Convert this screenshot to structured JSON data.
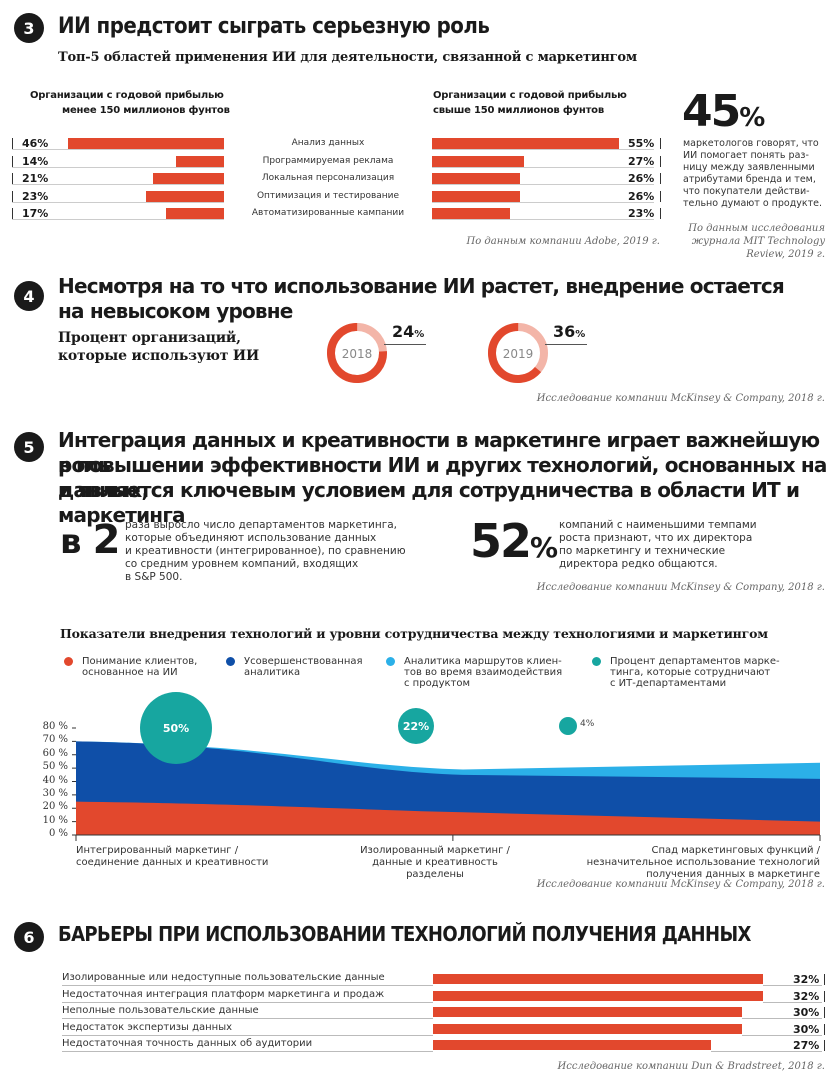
{
  "s3": {
    "num": "3",
    "title": "ИИ предстоит сыграть серьезную роль",
    "subtitle": "Топ-5 областей применения ИИ для деятельности, связанной с маркетингом",
    "left_head_1": "Организации с годовой прибылью",
    "left_head_2": "менее 150 миллионов фунтов",
    "right_head_1": "Организации с годовой прибылью",
    "right_head_2": "свыше 150 миллионов фунтов",
    "big_pct": "45",
    "big_pct_sign": "%",
    "big_text": [
      "маркетологов говорят, что",
      "ИИ помогает понять раз-",
      "ницу между заявленными",
      "атрибутами бренда и тем,",
      "что покупатели действи-",
      "тельно думают о продукте."
    ],
    "source_left": "По данным компании Adobe, 2019 г.",
    "source_right": [
      "По данным исследования",
      "журнала MIT Technology",
      "Review, 2019 г."
    ]
  },
  "s4": {
    "num": "4",
    "title_1": "Несмотря на то что использование ИИ растет, внедрение остается",
    "title_2": "на невысоком уровне",
    "label_1": "Процент организаций,",
    "label_2": "которые используют ИИ",
    "source": "Исследование компании McKinsey & Company, 2018 г."
  },
  "s5": {
    "num": "5",
    "title_1": "Интеграция данных и креативности в маркетинге играет важнейшую роль",
    "title_2": "в повышении эффективности ИИ и других технологий, основанных на данных,",
    "title_3": "и является ключевым условием для сотрудничества в области ИТ и маркетинга",
    "stat1_a": "в",
    "stat1_b": "2",
    "stat1_text": [
      "раза выросло число департаментов маркетинга,",
      "которые объединяют использование данных",
      "и креативности (интегрированное), по сравнению",
      "со средним уровнем компаний, входящих",
      "в S&P 500."
    ],
    "stat2_num": "52",
    "stat2_sign": "%",
    "stat2_text": [
      "компаний с наименьшими темпами",
      "роста признают, что их директора",
      "по маркетингу и технические",
      "директора редко общаются."
    ],
    "source": "Исследование компании McKinsey & Company, 2018 г.",
    "area_title": "Показатели внедрения технологий и уровни сотрудничества между технологиями и маркетингом",
    "legend": [
      {
        "text": [
          "Понимание клиентов,",
          "основанное на ИИ"
        ],
        "color": "#e2482d"
      },
      {
        "text": [
          "Усовершенствованная",
          "аналитика"
        ],
        "color": "#0f4fa8"
      },
      {
        "text": [
          "Аналитика маршрутов клиен-",
          "тов во время взаимодействия",
          "с продуктом"
        ],
        "color": "#2bb0e8"
      },
      {
        "text": [
          "Процент департаментов марке-",
          "тинга, которые сотрудничают",
          "с ИТ-департаментами"
        ],
        "color": "#17a6a0"
      }
    ],
    "xlabels": [
      [
        "Интегрированный маркетинг /",
        "соединение данных и креативности"
      ],
      [
        "Изолированный маркетинг /",
        "данные и креативность разделены"
      ],
      [
        "Спад маркетинговых функций /",
        "незначительное использование технологий",
        "получения данных в маркетинге"
      ]
    ],
    "area_source": "Исследование компании McKinsey & Company, 2018 г."
  },
  "s6": {
    "num": "6",
    "title": "БАРЬЕРЫ ПРИ ИСПОЛЬЗОВАНИИ ТЕХНОЛОГИЙ ПОЛУЧЕНИЯ ДАННЫХ",
    "source": "Исследование компании Dun & Bradstreet, 2018 г."
  },
  "chart_data": [
    {
      "type": "bar",
      "title": "Топ-5 областей применения ИИ для деятельности, связанной с маркетингом",
      "categories": [
        "Анализ данных",
        "Программируемая реклама",
        "Локальная персонализация",
        "Оптимизация и тестирование",
        "Автоматизированные кампании"
      ],
      "series": [
        {
          "name": "Организации с годовой прибылью менее 150 миллионов фунтов",
          "values": [
            46,
            14,
            21,
            23,
            17
          ],
          "labels": [
            "46%",
            "14%",
            "21%",
            "23%",
            "17%"
          ]
        },
        {
          "name": "Организации с годовой прибылью свыше 150 миллионов фунтов",
          "values": [
            55,
            27,
            26,
            26,
            23
          ],
          "labels": [
            "55%",
            "27%",
            "26%",
            "26%",
            "23%"
          ]
        }
      ],
      "color": "#e2482d"
    },
    {
      "type": "pie",
      "title": "Процент организаций, которые используют ИИ",
      "items": [
        {
          "label": "2018",
          "value": 24,
          "value_label": "24",
          "sign": "%"
        },
        {
          "label": "2019",
          "value": 36,
          "value_label": "36",
          "sign": "%"
        }
      ],
      "color": "#e2482d"
    },
    {
      "type": "area",
      "title": "Показатели внедрения технологий и уровни сотрудничества между технологиями и маркетингом",
      "x": [
        0,
        1,
        2
      ],
      "yticks": [
        "0 %",
        "10 %",
        "20 %",
        "30 %",
        "40 %",
        "50 %",
        "60 %",
        "70 %",
        "80 %"
      ],
      "ylim": [
        0,
        80
      ],
      "series": [
        {
          "name": "Понимание клиентов, основанное на ИИ",
          "values": [
            25,
            17,
            10
          ],
          "color": "#e2482d"
        },
        {
          "name": "Усовершенствованная аналитика",
          "values": [
            70,
            45,
            42
          ],
          "color": "#0f4fa8"
        },
        {
          "name": "Аналитика маршрутов клиентов во время взаимодействия с продуктом",
          "values": [
            70,
            49,
            54
          ],
          "color": "#2bb0e8"
        }
      ],
      "bubbles": [
        {
          "x": 0.25,
          "value": 50,
          "label": "50%"
        },
        {
          "x": 0.95,
          "value": 22,
          "label": "22%"
        },
        {
          "x": 1.55,
          "value": 4,
          "label": "4%"
        }
      ]
    },
    {
      "type": "bar",
      "title": "БАРЬЕРЫ ПРИ ИСПОЛЬЗОВАНИИ ТЕХНОЛОГИЙ ПОЛУЧЕНИЯ ДАННЫХ",
      "categories": [
        "Изолированные или недоступные пользовательские данные",
        "Недостаточная интеграция платформ маркетинга и продаж",
        "Неполные пользовательские данные",
        "Недостаток экспертизы данных",
        "Недостаточная точность данных об аудитории"
      ],
      "values": [
        32,
        32,
        30,
        30,
        27
      ],
      "labels": [
        "32%",
        "32%",
        "30%",
        "30%",
        "27%"
      ],
      "color": "#e2482d"
    }
  ]
}
